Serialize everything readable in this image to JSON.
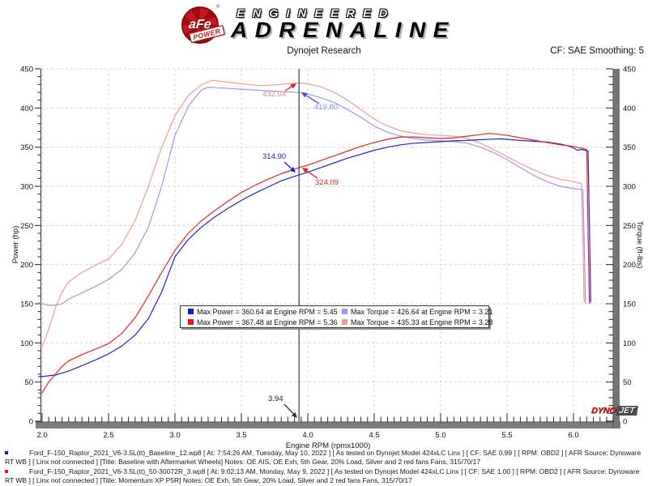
{
  "header": {
    "afe": "aFe",
    "afe_power": "POWER",
    "trademark": "®",
    "engineered": "ENGINEERED",
    "adrenaline": "ADRENALINE",
    "title": "Dynojet Research",
    "cf_label": "CF: SAE  Smoothing: 5"
  },
  "dynojet_logo": {
    "dyno": "DYNO",
    "jet": "JET"
  },
  "chart_data": {
    "type": "line",
    "title": "Dynojet Research",
    "xlabel": "Engine RPM (rpmx1000)",
    "ylabel_left": "Power (hp)",
    "ylabel_right": "Torque (ft-lbs)",
    "xlim": [
      1.95,
      6.3
    ],
    "ylim": [
      0,
      450
    ],
    "grid": true,
    "x_tick_labels": [
      "2.0",
      "2.5",
      "3.0",
      "3.5",
      "4.0",
      "4.5",
      "5.0",
      "5.5",
      "6.0"
    ],
    "y_tick_labels": [
      "0",
      "50",
      "100",
      "150",
      "200",
      "250",
      "300",
      "350",
      "400",
      "450"
    ],
    "x_minor_step": 0.05,
    "y_minor_step": 10,
    "cursor": {
      "rpm": 3.94,
      "label": "3.94"
    },
    "legend_position": "bottom-center-inside",
    "legend": [
      {
        "swatch": "#1616d6",
        "text": "Max Power = 360.64 at Engine RPM = 5.45"
      },
      {
        "swatch": "#ea1414",
        "text": "Max Power = 367.48 at Engine RPM = 5.36"
      },
      {
        "swatch": "#9a9af2",
        "text": "Max Torque = 426.64 at Engine RPM = 3.21"
      },
      {
        "swatch": "#f29a9a",
        "text": "Max Torque = 435.33 at Engine RPM = 3.28"
      }
    ],
    "annotations": [
      {
        "text": "432.04",
        "color": "#e88585",
        "arrow": "#dd2222",
        "label": [
          324,
          119
        ],
        "from": [
          352,
          112
        ],
        "to": [
          366,
          103
        ]
      },
      {
        "text": "419.80",
        "color": "#8c8ce8",
        "arrow": "#4444dd",
        "label": [
          388,
          135
        ],
        "from": [
          394,
          128
        ],
        "to": [
          372,
          114
        ]
      },
      {
        "text": "314.90",
        "color": "#2222cc",
        "arrow": "#2222cc",
        "label": [
          324,
          196
        ],
        "from": [
          351,
          200
        ],
        "to": [
          365,
          213
        ]
      },
      {
        "text": "324.09",
        "color": "#dd2222",
        "arrow": "#dd2222",
        "label": [
          389,
          228
        ],
        "from": [
          392,
          220
        ],
        "to": [
          373,
          207
        ]
      },
      {
        "text": "3.94",
        "color": "#222222",
        "arrow": "#333333",
        "label": [
          331,
          495
        ],
        "from": [
          351,
          499
        ],
        "to": [
          367,
          516
        ]
      }
    ],
    "series": [
      {
        "id": "torque-baseline",
        "run": "Baseline",
        "unit": "ft-lbs",
        "color": "#9a9af2",
        "points": [
          [
            1.97,
            152
          ],
          [
            2.0,
            150
          ],
          [
            2.05,
            148
          ],
          [
            2.1,
            148
          ],
          [
            2.15,
            150
          ],
          [
            2.2,
            156
          ],
          [
            2.3,
            164
          ],
          [
            2.4,
            172
          ],
          [
            2.5,
            181
          ],
          [
            2.6,
            194
          ],
          [
            2.7,
            215
          ],
          [
            2.8,
            248
          ],
          [
            2.9,
            300
          ],
          [
            3.0,
            365
          ],
          [
            3.1,
            402
          ],
          [
            3.15,
            413
          ],
          [
            3.2,
            423
          ],
          [
            3.25,
            426.6
          ],
          [
            3.3,
            426
          ],
          [
            3.4,
            425
          ],
          [
            3.5,
            424
          ],
          [
            3.6,
            423
          ],
          [
            3.7,
            422
          ],
          [
            3.8,
            421
          ],
          [
            3.94,
            419.8
          ],
          [
            4.0,
            418
          ],
          [
            4.1,
            413
          ],
          [
            4.2,
            407
          ],
          [
            4.3,
            398
          ],
          [
            4.4,
            388
          ],
          [
            4.5,
            377
          ],
          [
            4.6,
            369
          ],
          [
            4.7,
            364
          ],
          [
            4.8,
            361
          ],
          [
            4.9,
            359
          ],
          [
            5.0,
            358
          ],
          [
            5.1,
            357
          ],
          [
            5.2,
            355
          ],
          [
            5.3,
            350
          ],
          [
            5.4,
            343
          ],
          [
            5.5,
            334
          ],
          [
            5.6,
            324
          ],
          [
            5.7,
            314
          ],
          [
            5.8,
            306
          ],
          [
            5.9,
            300
          ],
          [
            6.0,
            297
          ],
          [
            6.05,
            296
          ],
          [
            6.07,
            296
          ],
          [
            6.08,
            235
          ],
          [
            6.09,
            150
          ]
        ]
      },
      {
        "id": "torque-momentum",
        "run": "Momentum XP P5R",
        "unit": "ft-lbs",
        "color": "#f29a9a",
        "points": [
          [
            1.97,
            97
          ],
          [
            2.0,
            95
          ],
          [
            2.05,
            118
          ],
          [
            2.1,
            145
          ],
          [
            2.15,
            165
          ],
          [
            2.2,
            178
          ],
          [
            2.3,
            190
          ],
          [
            2.4,
            199
          ],
          [
            2.5,
            207
          ],
          [
            2.6,
            226
          ],
          [
            2.7,
            256
          ],
          [
            2.8,
            300
          ],
          [
            2.9,
            350
          ],
          [
            3.0,
            390
          ],
          [
            3.1,
            416
          ],
          [
            3.2,
            430
          ],
          [
            3.28,
            435.3
          ],
          [
            3.35,
            434
          ],
          [
            3.45,
            432
          ],
          [
            3.55,
            430
          ],
          [
            3.65,
            428.5
          ],
          [
            3.75,
            429.5
          ],
          [
            3.85,
            431
          ],
          [
            3.94,
            432
          ],
          [
            4.0,
            431
          ],
          [
            4.1,
            427
          ],
          [
            4.2,
            420
          ],
          [
            4.3,
            410
          ],
          [
            4.4,
            398
          ],
          [
            4.5,
            386
          ],
          [
            4.6,
            377
          ],
          [
            4.7,
            371
          ],
          [
            4.8,
            368
          ],
          [
            4.9,
            366
          ],
          [
            5.0,
            365
          ],
          [
            5.1,
            364
          ],
          [
            5.2,
            361
          ],
          [
            5.3,
            355
          ],
          [
            5.4,
            347
          ],
          [
            5.5,
            338
          ],
          [
            5.6,
            329
          ],
          [
            5.7,
            321
          ],
          [
            5.8,
            314
          ],
          [
            5.9,
            309
          ],
          [
            6.0,
            306
          ],
          [
            6.04,
            304
          ],
          [
            6.06,
            304
          ],
          [
            6.07,
            240
          ],
          [
            6.08,
            152
          ]
        ]
      },
      {
        "id": "power-baseline",
        "run": "Baseline",
        "unit": "hp",
        "color": "#2424cc",
        "points": [
          [
            1.97,
            57
          ],
          [
            2.0,
            57
          ],
          [
            2.05,
            58
          ],
          [
            2.1,
            59
          ],
          [
            2.2,
            64
          ],
          [
            2.3,
            71
          ],
          [
            2.4,
            78
          ],
          [
            2.5,
            86
          ],
          [
            2.6,
            96
          ],
          [
            2.7,
            110
          ],
          [
            2.8,
            131
          ],
          [
            2.9,
            165
          ],
          [
            3.0,
            210
          ],
          [
            3.1,
            232
          ],
          [
            3.2,
            248
          ],
          [
            3.3,
            261
          ],
          [
            3.4,
            272
          ],
          [
            3.5,
            282
          ],
          [
            3.6,
            291
          ],
          [
            3.7,
            299
          ],
          [
            3.8,
            307
          ],
          [
            3.94,
            314.9
          ],
          [
            4.0,
            318
          ],
          [
            4.1,
            324
          ],
          [
            4.2,
            330
          ],
          [
            4.3,
            336
          ],
          [
            4.4,
            341
          ],
          [
            4.5,
            346
          ],
          [
            4.6,
            350
          ],
          [
            4.7,
            353
          ],
          [
            4.8,
            355
          ],
          [
            4.9,
            356
          ],
          [
            5.0,
            357
          ],
          [
            5.1,
            358
          ],
          [
            5.2,
            358.5
          ],
          [
            5.3,
            359.5
          ],
          [
            5.4,
            360.3
          ],
          [
            5.45,
            360.6
          ],
          [
            5.5,
            360
          ],
          [
            5.6,
            358.5
          ],
          [
            5.7,
            357.5
          ],
          [
            5.8,
            356.5
          ],
          [
            5.9,
            354
          ],
          [
            5.95,
            352
          ],
          [
            6.0,
            349
          ],
          [
            6.03,
            346
          ],
          [
            6.06,
            347
          ],
          [
            6.09,
            346
          ],
          [
            6.11,
            345
          ],
          [
            6.12,
            250
          ],
          [
            6.13,
            152
          ]
        ]
      },
      {
        "id": "power-momentum",
        "run": "Momentum XP P5R",
        "unit": "hp",
        "color": "#e02828",
        "points": [
          [
            1.97,
            36
          ],
          [
            2.0,
            36
          ],
          [
            2.05,
            50
          ],
          [
            2.1,
            60
          ],
          [
            2.15,
            70
          ],
          [
            2.2,
            77
          ],
          [
            2.3,
            85
          ],
          [
            2.4,
            92
          ],
          [
            2.5,
            99
          ],
          [
            2.6,
            112
          ],
          [
            2.7,
            132
          ],
          [
            2.8,
            160
          ],
          [
            2.9,
            190
          ],
          [
            3.0,
            218
          ],
          [
            3.1,
            240
          ],
          [
            3.2,
            256
          ],
          [
            3.3,
            269
          ],
          [
            3.4,
            281
          ],
          [
            3.5,
            292
          ],
          [
            3.6,
            301
          ],
          [
            3.7,
            309
          ],
          [
            3.8,
            316
          ],
          [
            3.94,
            324.1
          ],
          [
            4.0,
            327
          ],
          [
            4.1,
            333
          ],
          [
            4.2,
            339
          ],
          [
            4.3,
            345
          ],
          [
            4.4,
            351
          ],
          [
            4.5,
            356
          ],
          [
            4.6,
            360
          ],
          [
            4.7,
            363
          ],
          [
            4.8,
            363
          ],
          [
            4.9,
            362
          ],
          [
            5.0,
            361
          ],
          [
            5.1,
            362
          ],
          [
            5.2,
            364
          ],
          [
            5.3,
            366
          ],
          [
            5.36,
            367.5
          ],
          [
            5.4,
            367
          ],
          [
            5.5,
            365
          ],
          [
            5.6,
            362
          ],
          [
            5.7,
            359
          ],
          [
            5.8,
            356
          ],
          [
            5.9,
            353
          ],
          [
            6.0,
            351
          ],
          [
            6.05,
            349
          ],
          [
            6.08,
            348
          ],
          [
            6.1,
            347
          ],
          [
            6.11,
            240
          ],
          [
            6.12,
            150
          ]
        ]
      }
    ]
  },
  "footer": {
    "runs": [
      {
        "bullet_color": "#1616d6",
        "text": "Ford_F-150_Raptor_2021_V6-3.5L(tt)_Baseline_12.wp8 [ At: 7:54:26 AM, Tuesday, May 10, 2022 ] [ As tested on Dynojet Model 424xLC Linx ] [ CF: SAE 0.99 ] [ RPM: OBD2 ] [ AFR Source: Dynoware RT WB ] [ Linx not connected ] [Title: Baseline with Aftermarket Wheels]  Notes: OE AIS, OE Exh, 5th Gear, 20% Load, Silver and 2 red fans Fans, 315/70/17"
      },
      {
        "bullet_color": "#ea1414",
        "text": "Ford_F-150_Raptor_2021_V6-3.5L(tt)_50-30072R_3.wp8 [ At: 9:02:13 AM, Monday, May 9, 2022 ] [ As tested on Dynojet Model 424xLC Linx ] [ CF: SAE 1.00 ] [ RPM: OBD2 ] [ AFR Source: Dynoware RT WB ] [ Linx not connected ] [Title: Momentum XP P5R]  Notes: OE Exh, 5th Gear, 20% Load, Silver and 2 red fans Fans, 315/70/17"
      }
    ]
  }
}
